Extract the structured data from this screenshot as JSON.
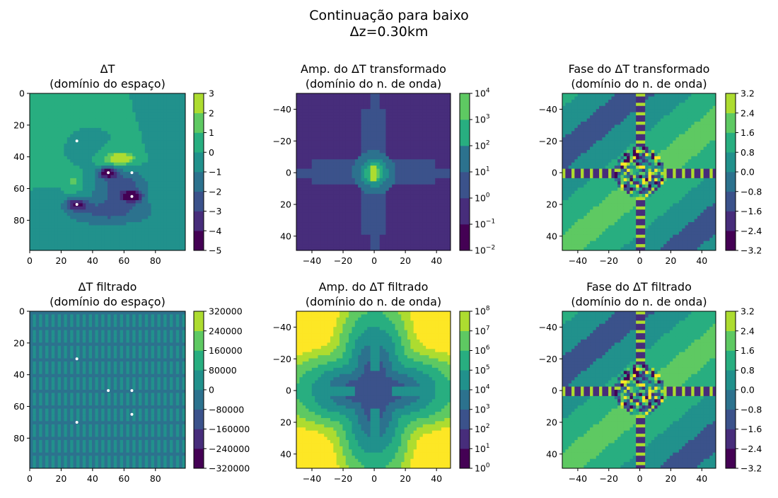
{
  "figure": {
    "title_line1": "Continuação para baixo",
    "title_line2": "Δz=0.30km"
  },
  "colors": {
    "viridis": [
      "#440154",
      "#472d7b",
      "#3b528b",
      "#2c728e",
      "#21918c",
      "#28ae80",
      "#5ec962",
      "#addc30",
      "#fde725"
    ],
    "marker": "#ffffff"
  },
  "chart_data": [
    {
      "id": "space",
      "type": "heatmap",
      "title_line1": "ΔT",
      "title_line2": "(domínio do espaço)",
      "xlim": [
        0,
        99
      ],
      "ylim": [
        99,
        0
      ],
      "xticks": [
        "0",
        "20",
        "40",
        "60",
        "80"
      ],
      "yticks": [
        "0",
        "20",
        "40",
        "60",
        "80"
      ],
      "colorbar": {
        "levels": [
          "−5",
          "−4",
          "−3",
          "−2",
          "−1",
          "0",
          "1",
          "2",
          "3"
        ],
        "scale": "linear"
      },
      "markers": [
        [
          30,
          30
        ],
        [
          50,
          50
        ],
        [
          65,
          50
        ],
        [
          65,
          65
        ],
        [
          30,
          70
        ]
      ]
    },
    {
      "id": "amp",
      "type": "heatmap",
      "title_line1": "Amp. do ΔT transformado",
      "title_line2": "(domínio do n. de onda)",
      "xlim": [
        -50,
        49
      ],
      "ylim": [
        49,
        -50
      ],
      "xticks": [
        "−40",
        "−20",
        "0",
        "20",
        "40"
      ],
      "yticks": [
        "−40",
        "−20",
        "0",
        "20",
        "40"
      ],
      "colorbar": {
        "levels": [
          "10^-2",
          "10^-1",
          "10^0",
          "10^1",
          "10^2",
          "10^3",
          "10^4"
        ],
        "scale": "log"
      }
    },
    {
      "id": "phase",
      "type": "heatmap",
      "title_line1": "Fase do ΔT transformado",
      "title_line2": "(domínio do n. de onda)",
      "xlim": [
        -50,
        49
      ],
      "ylim": [
        49,
        -50
      ],
      "xticks": [
        "−40",
        "−20",
        "0",
        "20",
        "40"
      ],
      "yticks": [
        "−40",
        "−20",
        "0",
        "20",
        "40"
      ],
      "colorbar": {
        "levels": [
          "−3.2",
          "−2.4",
          "−1.6",
          "−0.8",
          "0.0",
          "0.8",
          "1.6",
          "2.4",
          "3.2"
        ],
        "scale": "linear"
      }
    },
    {
      "id": "space_filt",
      "type": "heatmap",
      "title_line1": "ΔT filtrado",
      "title_line2": "(domínio do espaço)",
      "xlim": [
        0,
        99
      ],
      "ylim": [
        99,
        0
      ],
      "xticks": [
        "0",
        "20",
        "40",
        "60",
        "80"
      ],
      "yticks": [
        "0",
        "20",
        "40",
        "60",
        "80"
      ],
      "colorbar": {
        "levels": [
          "−320000",
          "−240000",
          "−160000",
          "−80000",
          "0",
          "80000",
          "160000",
          "240000",
          "320000"
        ],
        "scale": "linear"
      },
      "markers": [
        [
          30,
          30
        ],
        [
          50,
          50
        ],
        [
          65,
          50
        ],
        [
          65,
          65
        ],
        [
          30,
          70
        ]
      ]
    },
    {
      "id": "amp_filt",
      "type": "heatmap",
      "title_line1": "Amp. do ΔT filtrado",
      "title_line2": "(domínio do n. de onda)",
      "xlim": [
        -50,
        49
      ],
      "ylim": [
        49,
        -50
      ],
      "xticks": [
        "−40",
        "−20",
        "0",
        "20",
        "40"
      ],
      "yticks": [
        "−40",
        "−20",
        "0",
        "20",
        "40"
      ],
      "colorbar": {
        "levels": [
          "10^0",
          "10^1",
          "10^2",
          "10^3",
          "10^4",
          "10^5",
          "10^6",
          "10^7",
          "10^8"
        ],
        "scale": "log"
      }
    },
    {
      "id": "phase_filt",
      "type": "heatmap",
      "title_line1": "Fase do ΔT filtrado",
      "title_line2": "(domínio do n. de onda)",
      "xlim": [
        -50,
        49
      ],
      "ylim": [
        49,
        -50
      ],
      "xticks": [
        "−40",
        "−20",
        "0",
        "20",
        "40"
      ],
      "yticks": [
        "−40",
        "−20",
        "0",
        "20",
        "40"
      ],
      "colorbar": {
        "levels": [
          "−3.2",
          "−2.4",
          "−1.6",
          "−0.8",
          "0.0",
          "0.8",
          "1.6",
          "2.4",
          "3.2"
        ],
        "scale": "linear"
      }
    }
  ]
}
